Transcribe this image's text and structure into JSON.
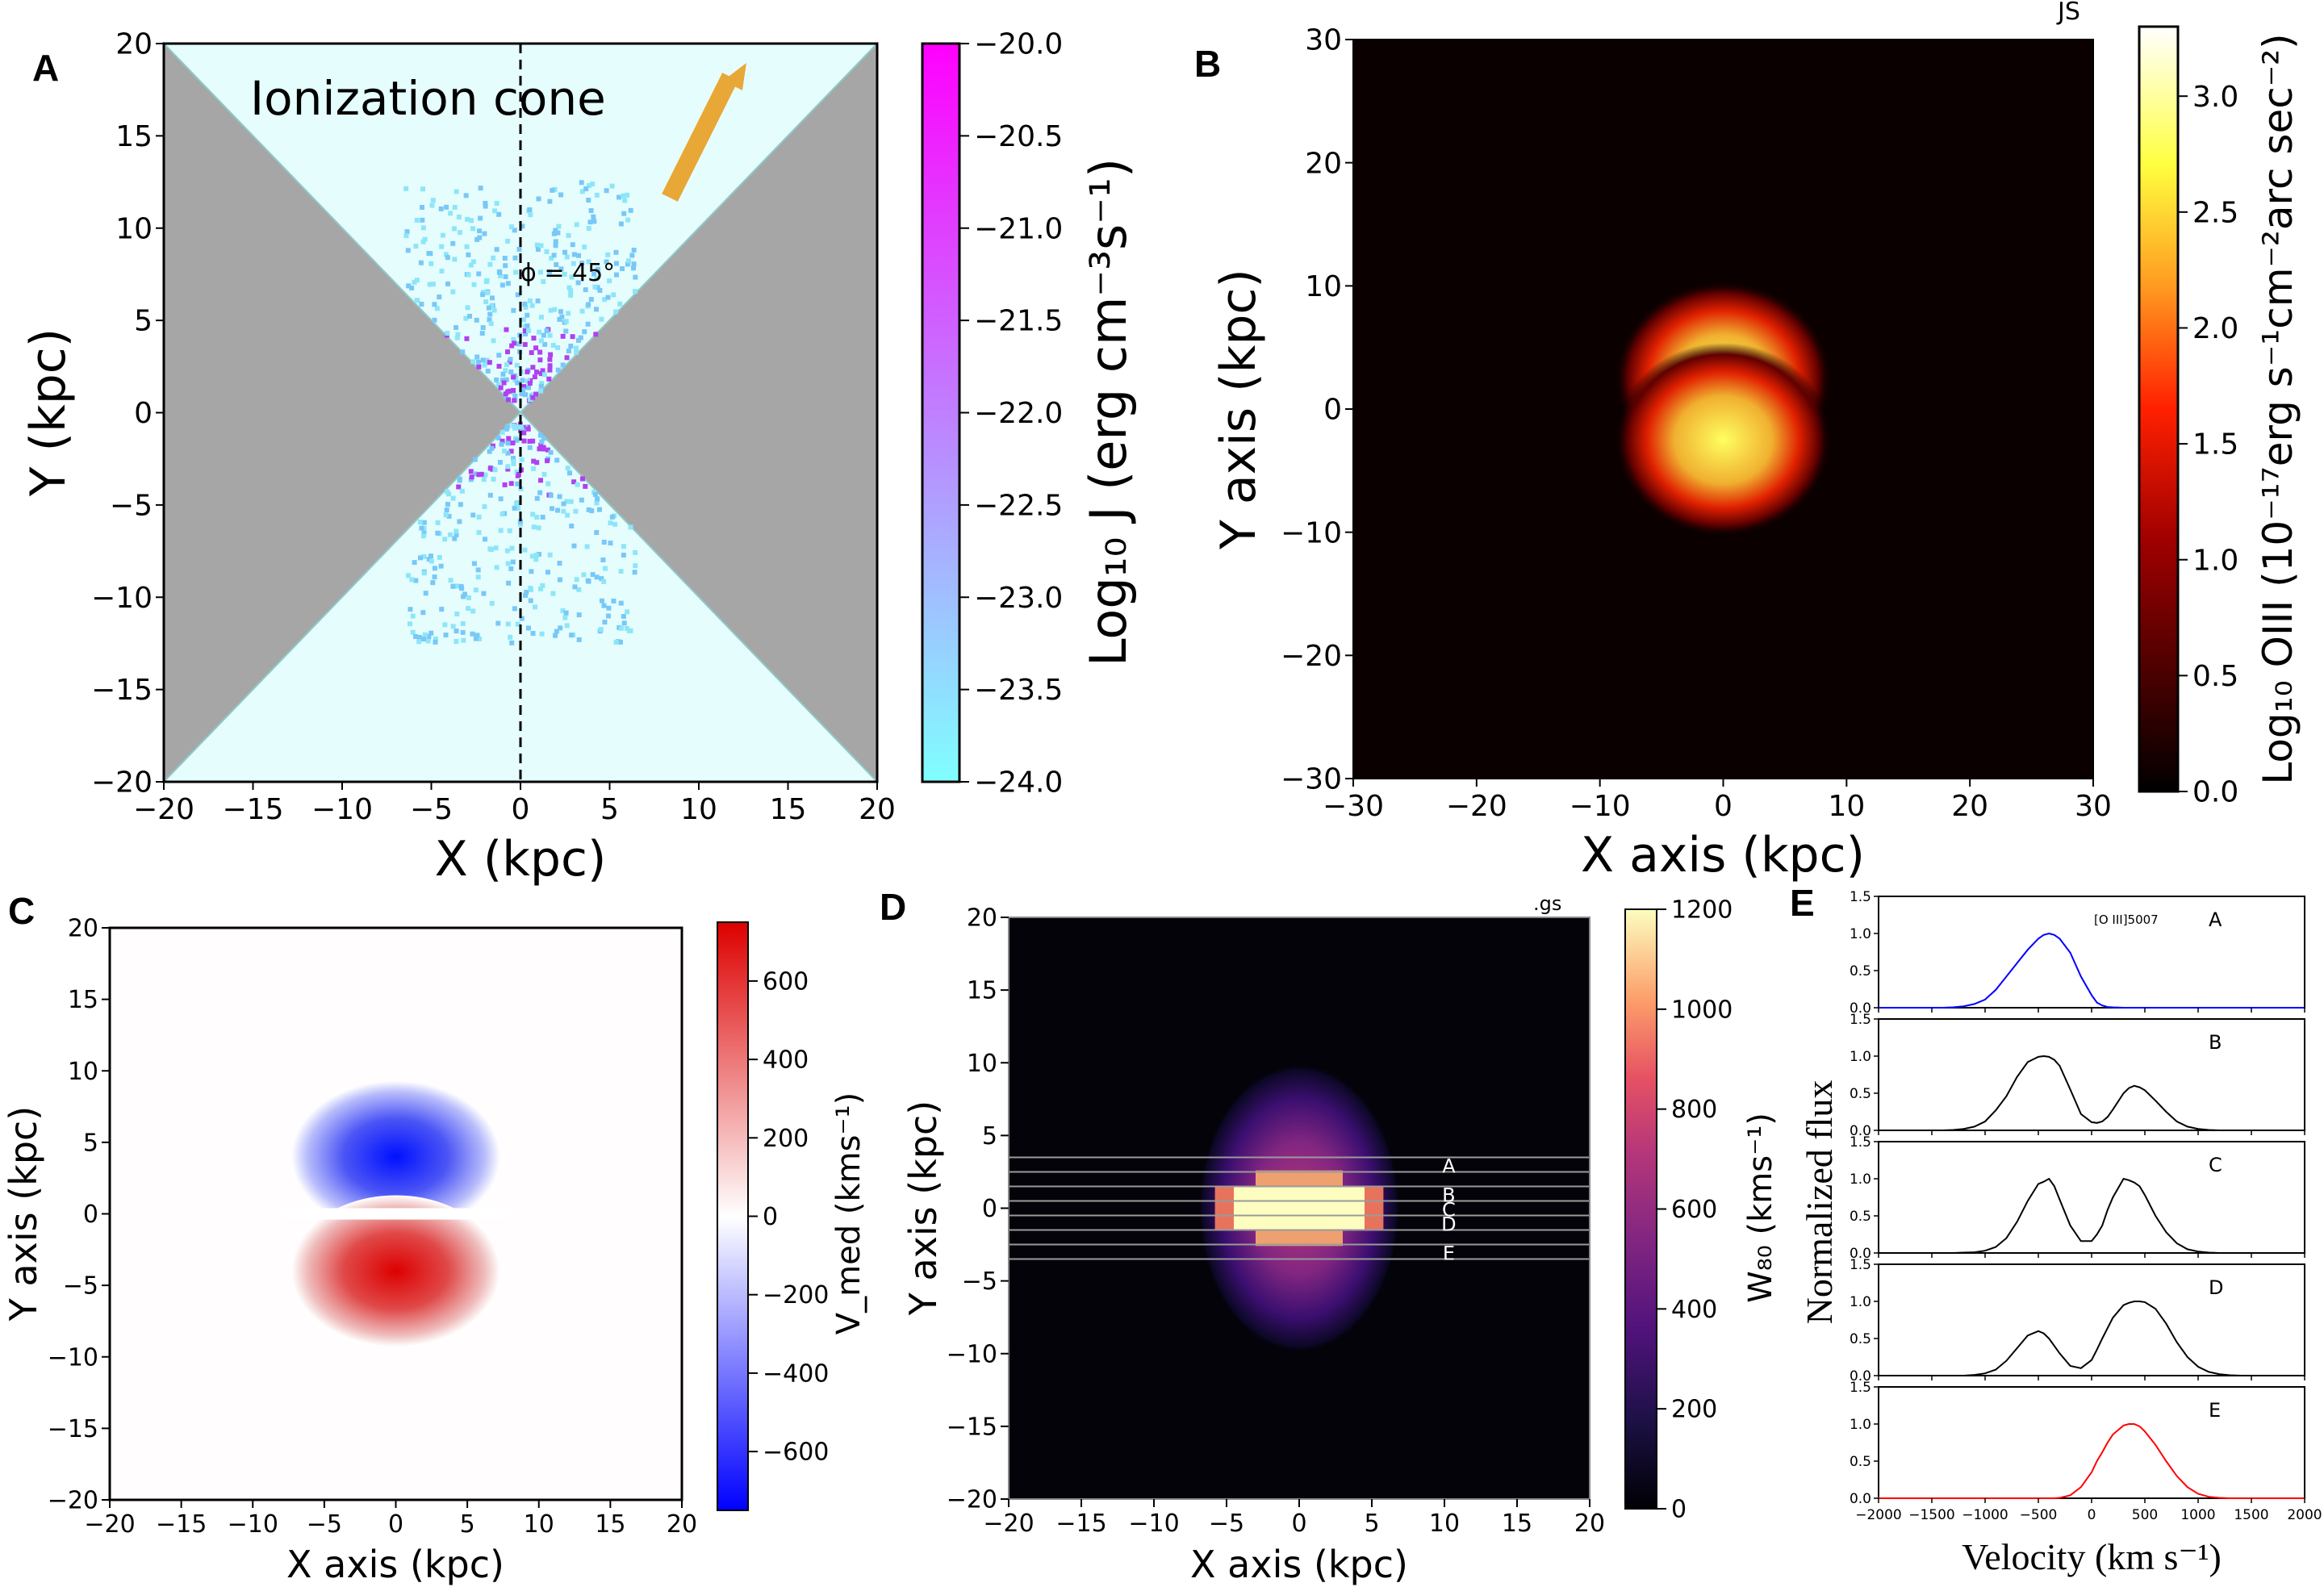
{
  "chart_data": [
    {
      "panel": "A",
      "type": "scatter",
      "xlabel": "X (kpc)",
      "ylabel": "Y (kpc)",
      "xlim": [
        -20,
        20
      ],
      "ylim": [
        -20,
        20
      ],
      "xticks": [
        "−20",
        "−15",
        "−10",
        "−5",
        "0",
        "5",
        "10",
        "15",
        "20"
      ],
      "yticks": [
        "−20",
        "−15",
        "−10",
        "−5",
        "0",
        "5",
        "10",
        "15",
        "20"
      ],
      "annotation_cone": "Ionization cone",
      "annotation_angle": "ϕ = 45°",
      "cone_half_angle_deg": 45,
      "colorbar": {
        "label": "Log₁₀ J (erg cm⁻³s⁻¹)",
        "range": [
          -24.0,
          -20.0
        ],
        "ticks": [
          "−20.0",
          "−20.5",
          "−21.0",
          "−21.5",
          "−22.0",
          "−22.5",
          "−23.0",
          "−23.5",
          "−24.0"
        ],
        "colors": [
          "#80ffff",
          "#ff00ff"
        ]
      },
      "colors": {
        "cone_fill": "#e6fdfd",
        "shadow": "#a6a6a6",
        "arrow": "#e8a838"
      },
      "scatter_extent_kpc": {
        "x": [
          -6.5,
          6.5
        ],
        "y": [
          -14.5,
          14.5
        ]
      }
    },
    {
      "panel": "B",
      "type": "heatmap",
      "xlabel": "X axis (kpc)",
      "ylabel": "Y axis (kpc)",
      "xlim": [
        -30,
        30
      ],
      "ylim": [
        -30,
        30
      ],
      "xticks": [
        "−30",
        "−20",
        "−10",
        "0",
        "10",
        "20",
        "30"
      ],
      "yticks": [
        "−30",
        "−20",
        "−10",
        "0",
        "10",
        "20",
        "30"
      ],
      "corner_text": "JS",
      "colorbar": {
        "label": "Log₁₀ OIII (10⁻¹⁷erg s⁻¹cm⁻²arc sec⁻²)",
        "range": [
          0.0,
          3.3
        ],
        "ticks": [
          "0.0",
          "0.5",
          "1.0",
          "1.5",
          "2.0",
          "2.5",
          "3.0"
        ],
        "colormap": "afmhot"
      },
      "blob": {
        "center_x": 0,
        "lobes_y": [
          2.5,
          -2.5
        ],
        "sigma_x": 4,
        "sigma_y": 4.5,
        "peak": 3.0
      }
    },
    {
      "panel": "C",
      "type": "heatmap",
      "xlabel": "X axis (kpc)",
      "ylabel": "Y axis (kpc)",
      "xlim": [
        -20,
        20
      ],
      "ylim": [
        -20,
        20
      ],
      "xticks": [
        "−20",
        "−15",
        "−10",
        "−5",
        "0",
        "5",
        "10",
        "15",
        "20"
      ],
      "yticks": [
        "−20",
        "−15",
        "−10",
        "−5",
        "0",
        "5",
        "10",
        "15",
        "20"
      ],
      "colorbar": {
        "label": "V_med (kms⁻¹)",
        "range": [
          -750,
          750
        ],
        "ticks": [
          "−600",
          "−400",
          "−200",
          "0",
          "200",
          "400",
          "600"
        ],
        "colormap": "bwr"
      },
      "lobes": [
        {
          "y": 4,
          "value": -750
        },
        {
          "y": -4,
          "value": 750
        }
      ]
    },
    {
      "panel": "D",
      "type": "heatmap",
      "xlabel": "X axis (kpc)",
      "ylabel": "Y axis (kpc)",
      "xlim": [
        -20,
        20
      ],
      "ylim": [
        -20,
        20
      ],
      "xticks": [
        "−20",
        "−15",
        "−10",
        "−5",
        "0",
        "5",
        "10",
        "15",
        "20"
      ],
      "yticks": [
        "−20",
        "−15",
        "−10",
        "−5",
        "0",
        "5",
        "10",
        "15",
        "20"
      ],
      "corner_text": ".gs",
      "colorbar": {
        "label": "W₈₀ (kms⁻¹)",
        "range": [
          0,
          1200
        ],
        "ticks": [
          "0",
          "200",
          "400",
          "600",
          "800",
          "1000",
          "1200"
        ],
        "colormap": "magma"
      },
      "slits": [
        {
          "label": "A",
          "y_range": [
            2.5,
            3.5
          ]
        },
        {
          "label": "B",
          "y_range": [
            0.5,
            1.5
          ]
        },
        {
          "label": "C",
          "y_range": [
            -0.5,
            0.5
          ]
        },
        {
          "label": "D",
          "y_range": [
            -1.5,
            -0.5
          ]
        },
        {
          "label": "E",
          "y_range": [
            -3.5,
            -2.5
          ]
        }
      ]
    },
    {
      "panel": "E",
      "type": "line",
      "xlabel": "Velocity (km s⁻¹)",
      "ylabel": "Normalized flux",
      "xlim": [
        -2000,
        2000
      ],
      "ylim": [
        0,
        1.5
      ],
      "xticks": [
        "−2000",
        "−1500",
        "−1000",
        "−500",
        "0",
        "500",
        "1000",
        "1500",
        "2000"
      ],
      "yticks": [
        "0.0",
        "0.5",
        "1.0",
        "1.5"
      ],
      "line_label": "[O III]5007",
      "x": [
        -2000,
        -1900,
        -1800,
        -1700,
        -1600,
        -1500,
        -1400,
        -1300,
        -1200,
        -1100,
        -1000,
        -900,
        -800,
        -700,
        -600,
        -500,
        -450,
        -400,
        -350,
        -300,
        -200,
        -100,
        0,
        50,
        100,
        150,
        200,
        300,
        350,
        400,
        450,
        500,
        600,
        700,
        800,
        900,
        1000,
        1100,
        1200,
        1300,
        1400,
        1500,
        1600,
        1700,
        1800,
        1900,
        2000
      ],
      "series": [
        {
          "name": "A",
          "color": "#0000ff",
          "values": [
            0,
            0,
            0,
            0,
            0,
            0,
            0,
            0.005,
            0.02,
            0.05,
            0.11,
            0.24,
            0.42,
            0.6,
            0.78,
            0.93,
            0.98,
            1.0,
            0.98,
            0.93,
            0.74,
            0.42,
            0.17,
            0.07,
            0.03,
            0.01,
            0.005,
            0,
            0,
            0,
            0,
            0,
            0,
            0,
            0,
            0,
            0,
            0,
            0,
            0,
            0,
            0,
            0,
            0,
            0,
            0,
            0
          ]
        },
        {
          "name": "B",
          "color": "#000000",
          "values": [
            0,
            0,
            0,
            0,
            0,
            0,
            0,
            0.005,
            0.02,
            0.05,
            0.12,
            0.27,
            0.46,
            0.72,
            0.92,
            0.99,
            1.0,
            0.99,
            0.95,
            0.87,
            0.55,
            0.22,
            0.11,
            0.1,
            0.12,
            0.18,
            0.28,
            0.5,
            0.57,
            0.6,
            0.58,
            0.54,
            0.4,
            0.25,
            0.12,
            0.05,
            0.02,
            0.005,
            0,
            0,
            0,
            0,
            0,
            0,
            0,
            0,
            0
          ]
        },
        {
          "name": "C",
          "color": "#000000",
          "values": [
            0,
            0,
            0,
            0,
            0,
            0,
            0,
            0,
            0.005,
            0.01,
            0.03,
            0.08,
            0.2,
            0.42,
            0.7,
            0.93,
            0.96,
            1.0,
            0.9,
            0.72,
            0.37,
            0.16,
            0.16,
            0.25,
            0.37,
            0.58,
            0.75,
            1.0,
            0.98,
            0.95,
            0.9,
            0.78,
            0.5,
            0.28,
            0.13,
            0.05,
            0.02,
            0.005,
            0,
            0,
            0,
            0,
            0,
            0,
            0,
            0,
            0
          ]
        },
        {
          "name": "D",
          "color": "#000000",
          "values": [
            0,
            0,
            0,
            0,
            0,
            0,
            0,
            0,
            0,
            0.01,
            0.03,
            0.08,
            0.2,
            0.37,
            0.54,
            0.6,
            0.57,
            0.5,
            0.4,
            0.3,
            0.13,
            0.1,
            0.21,
            0.35,
            0.5,
            0.64,
            0.78,
            0.95,
            0.98,
            1.0,
            1.0,
            0.99,
            0.9,
            0.7,
            0.45,
            0.25,
            0.12,
            0.05,
            0.02,
            0.005,
            0,
            0,
            0,
            0,
            0,
            0,
            0
          ]
        },
        {
          "name": "E",
          "color": "#ff0000",
          "values": [
            0,
            0,
            0,
            0,
            0,
            0,
            0,
            0,
            0,
            0,
            0,
            0,
            0,
            0,
            0,
            0,
            0,
            0,
            0,
            0.005,
            0.04,
            0.15,
            0.35,
            0.5,
            0.62,
            0.75,
            0.86,
            0.98,
            1.0,
            1.0,
            0.97,
            0.9,
            0.72,
            0.5,
            0.3,
            0.15,
            0.06,
            0.02,
            0.005,
            0,
            0,
            0,
            0,
            0,
            0,
            0,
            0
          ]
        }
      ]
    }
  ],
  "panels": {
    "A": {
      "label": "A"
    },
    "B": {
      "label": "B"
    },
    "C": {
      "label": "C"
    },
    "D": {
      "label": "D"
    },
    "E": {
      "label": "E"
    }
  }
}
